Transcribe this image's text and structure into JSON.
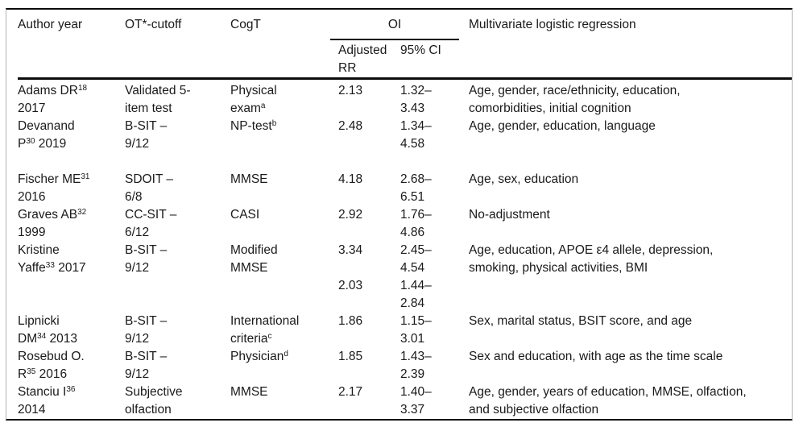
{
  "table": {
    "header": {
      "author": "Author year",
      "cutoff": "OT*-cutoff",
      "cogt": "CogT",
      "oi": "OI",
      "adjusted_rr": "Adjusted RR",
      "ci": "95% CI",
      "multivariate": "Multivariate logistic regression"
    },
    "cell_names": [
      "author-year",
      "ot-cutoff",
      "cogt",
      "adjusted-rr",
      "ci-95",
      "adjustment-variables"
    ],
    "rows": [
      {
        "cells": [
          [
            [
              "Adams DR",
              "^18"
            ],
            [
              "2017"
            ]
          ],
          [
            [
              "Validated 5-"
            ],
            [
              "item test"
            ]
          ],
          [
            [
              "Physical"
            ],
            [
              "exam",
              "^a"
            ]
          ],
          [
            [
              "2.13"
            ]
          ],
          [
            [
              "1.32–"
            ],
            [
              "3.43"
            ]
          ],
          [
            [
              "Age, gender, race/ethnicity, education,"
            ],
            [
              "comorbidities, initial cognition"
            ]
          ]
        ]
      },
      {
        "gap_after": true,
        "cells": [
          [
            [
              "Devanand"
            ],
            [
              "P",
              "^30",
              " 2019"
            ]
          ],
          [
            [
              "B-SIT –"
            ],
            [
              "9/12"
            ]
          ],
          [
            [
              "NP-test",
              "^b"
            ]
          ],
          [
            [
              "2.48"
            ]
          ],
          [
            [
              "1.34–"
            ],
            [
              "4.58"
            ]
          ],
          [
            [
              "Age, gender, education, language"
            ]
          ]
        ]
      },
      {
        "cells": [
          [
            [
              "Fischer ME",
              "^31"
            ],
            [
              "2016"
            ]
          ],
          [
            [
              "SDOIT –"
            ],
            [
              "6/8"
            ]
          ],
          [
            [
              "MMSE"
            ]
          ],
          [
            [
              "4.18"
            ]
          ],
          [
            [
              "2.68–"
            ],
            [
              "6.51"
            ]
          ],
          [
            [
              "Age, sex, education"
            ]
          ]
        ]
      },
      {
        "cells": [
          [
            [
              "Graves AB",
              "^32"
            ],
            [
              "1999"
            ]
          ],
          [
            [
              "CC-SIT –"
            ],
            [
              "6/12"
            ]
          ],
          [
            [
              "CASI"
            ]
          ],
          [
            [
              "2.92"
            ]
          ],
          [
            [
              "1.76–"
            ],
            [
              "4.86"
            ]
          ],
          [
            [
              "No-adjustment"
            ]
          ]
        ]
      },
      {
        "cells": [
          [
            [
              "Kristine"
            ],
            [
              "Yaffe",
              "^33",
              " 2017"
            ]
          ],
          [
            [
              "B-SIT –"
            ],
            [
              "9/12"
            ]
          ],
          [
            [
              "Modified"
            ],
            [
              "MMSE"
            ]
          ],
          [
            [
              "3.34"
            ],
            [
              ""
            ],
            [
              "2.03"
            ]
          ],
          [
            [
              "2.45–"
            ],
            [
              "4.54"
            ],
            [
              "1.44–"
            ],
            [
              "2.84"
            ]
          ],
          [
            [
              "Age, education, APOE ε4 allele, depression,"
            ],
            [
              "smoking, physical activities, BMI"
            ]
          ]
        ]
      },
      {
        "cells": [
          [
            [
              "Lipnicki"
            ],
            [
              "DM",
              "^34",
              " 2013"
            ]
          ],
          [
            [
              "B-SIT –"
            ],
            [
              "9/12"
            ]
          ],
          [
            [
              "International"
            ],
            [
              "criteria",
              "^c"
            ]
          ],
          [
            [
              "1.86"
            ]
          ],
          [
            [
              "1.15–"
            ],
            [
              "3.01"
            ]
          ],
          [
            [
              "Sex, marital status, BSIT score, and age"
            ]
          ]
        ]
      },
      {
        "cells": [
          [
            [
              "Rosebud O."
            ],
            [
              "R",
              "^35",
              " 2016"
            ]
          ],
          [
            [
              "B-SIT –"
            ],
            [
              "9/12"
            ]
          ],
          [
            [
              "Physician",
              "^d"
            ]
          ],
          [
            [
              "1.85"
            ]
          ],
          [
            [
              "1.43–"
            ],
            [
              "2.39"
            ]
          ],
          [
            [
              "Sex and education, with age as the time scale"
            ]
          ]
        ]
      },
      {
        "cells": [
          [
            [
              "Stanciu I",
              "^36"
            ],
            [
              "2014"
            ]
          ],
          [
            [
              "Subjective"
            ],
            [
              "olfaction"
            ]
          ],
          [
            [
              "MMSE"
            ]
          ],
          [
            [
              "2.17"
            ]
          ],
          [
            [
              "1.40–"
            ],
            [
              "3.37"
            ]
          ],
          [
            [
              "Age, gender, years of education, MMSE, olfaction,"
            ],
            [
              "and subjective olfaction"
            ]
          ]
        ]
      }
    ]
  }
}
